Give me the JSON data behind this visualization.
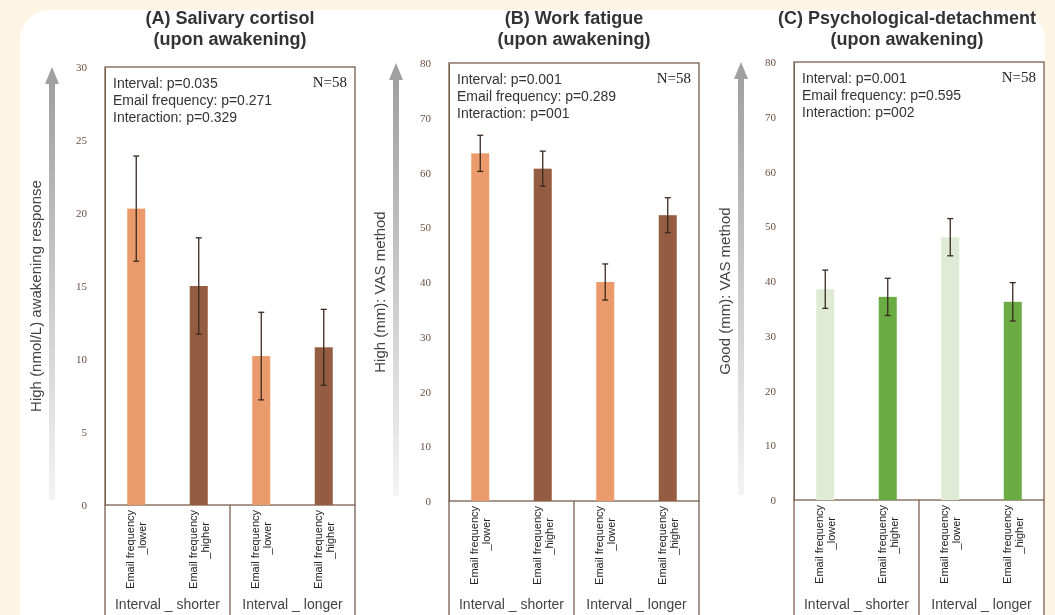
{
  "chart_data": [
    {
      "type": "bar",
      "title": "(A) Salivary cortisol\n(upon awakening)",
      "ylabel": "High (nmol/L) awakening response",
      "categories": [
        "Email frequency\n_lower",
        "Email frequency\n_higher",
        "Email frequency\n_lower",
        "Email frequency\n_higher"
      ],
      "values": [
        20.3,
        15.0,
        10.2,
        10.8
      ],
      "errors": [
        3.6,
        3.3,
        3.0,
        2.6
      ],
      "colors": [
        "#eb9b6b",
        "#945c40",
        "#eb9b6b",
        "#945c40"
      ],
      "ylim": [
        0,
        30
      ],
      "yticks": [
        0,
        5,
        10,
        15,
        20,
        25,
        30
      ],
      "annotations": [
        "Interval: p=0.035\nEmail frequency: p=0.271\nInteraction: p=0.329",
        "N=58",
        "Interval _ shorter",
        "Interval _ longer"
      ]
    },
    {
      "type": "bar",
      "title": "(B) Work fatigue\n(upon awakening)",
      "ylabel": "High (mm): VAS method",
      "categories": [
        "Email frequency\n_lower",
        "Email frequency\n_higher",
        "Email frequency\n_lower",
        "Email frequency\n_higher"
      ],
      "values": [
        63.5,
        60.7,
        40.0,
        52.2
      ],
      "errors": [
        3.3,
        3.2,
        3.3,
        3.2
      ],
      "colors": [
        "#eb9b6b",
        "#945c40",
        "#eb9b6b",
        "#945c40"
      ],
      "ylim": [
        0,
        80
      ],
      "yticks": [
        0,
        10,
        20,
        30,
        40,
        50,
        60,
        70,
        80
      ],
      "annotations": [
        "Interval: p=0.001\nEmail frequency: p=0.289\nInteraction: p=001",
        "N=58",
        "Interval _ shorter",
        "Interval _ longer"
      ]
    },
    {
      "type": "bar",
      "title": "(C) Psychological-detachment\n(upon awakening)",
      "ylabel": "Good  (mm): VAS method",
      "categories": [
        "Email frequency\n_lower",
        "Email frequency\n_higher",
        "Email frequency\n_lower",
        "Email frequency\n_higher"
      ],
      "values": [
        38.5,
        37.1,
        48.0,
        36.2
      ],
      "errors": [
        3.5,
        3.4,
        3.4,
        3.5
      ],
      "colors": [
        "#dfebd5",
        "#6aac43",
        "#dfebd5",
        "#6aac43"
      ],
      "ylim": [
        0,
        80
      ],
      "yticks": [
        0,
        10,
        20,
        30,
        40,
        50,
        60,
        70,
        80
      ],
      "annotations": [
        "Interval: p=0.001\nEmail frequency: p=0.595\nInteraction: p=002",
        "N=58",
        "Interval _ shorter",
        "Interval _ longer"
      ]
    }
  ]
}
